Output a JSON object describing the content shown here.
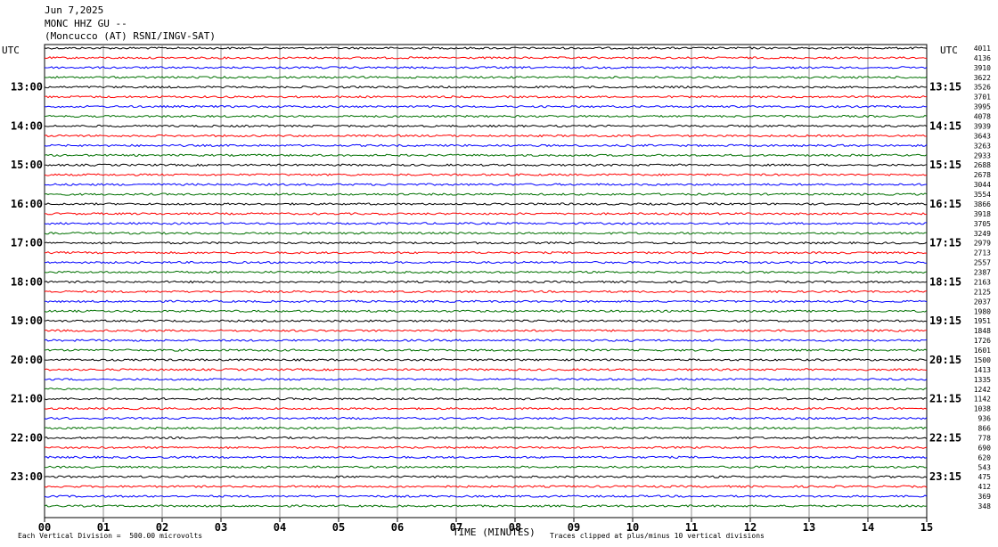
{
  "header": {
    "date": "Jun 7,2025",
    "channel": "MONC HHZ GU --",
    "station": "(Moncucco (AT) RSNI/INGV-SAT)"
  },
  "labels": {
    "utc_left": "UTC",
    "utc_right": "UTC",
    "xaxis_title": "TIME (MINUTES)",
    "scale_note": "Each Vertical Division =  500.00 microvolts",
    "clip_note": "Traces clipped at plus/minus 10 vertical divisions"
  },
  "colors": {
    "cycle": [
      "#000000",
      "#ff0000",
      "#0000ff",
      "#007000"
    ],
    "grid": "#8f8f8f"
  },
  "chart_data": {
    "type": "line",
    "title": "MONC HHZ GU --",
    "xlabel": "TIME (MINUTES)",
    "xlim": [
      0,
      15
    ],
    "x_ticks": [
      "00",
      "01",
      "02",
      "03",
      "04",
      "05",
      "06",
      "07",
      "08",
      "09",
      "10",
      "11",
      "12",
      "13",
      "14",
      "15"
    ],
    "left_time_labels": [
      "13:00",
      "14:00",
      "15:00",
      "16:00",
      "17:00",
      "18:00",
      "19:00",
      "20:00",
      "21:00",
      "22:00",
      "23:00"
    ],
    "right_time_labels": [
      "13:15",
      "14:15",
      "15:15",
      "16:15",
      "17:15",
      "18:15",
      "19:15",
      "20:15",
      "21:15",
      "22:15",
      "23:15"
    ],
    "trace_rms_counts": [
      "4011",
      "4136",
      "3910",
      "3622",
      "3526",
      "3701",
      "3995",
      "4078",
      "3939",
      "3643",
      "3263",
      "2933",
      "2688",
      "2678",
      "3044",
      "3554",
      "3866",
      "3918",
      "3705",
      "3249",
      "2979",
      "2713",
      "2557",
      "2387",
      "2163",
      "2125",
      "2037",
      "1980",
      "1951",
      "1848",
      "1726",
      "1601",
      "1500",
      "1413",
      "1335",
      "1242",
      "1142",
      "1038",
      "936",
      "866",
      "778",
      "690",
      "620",
      "543",
      "475",
      "412",
      "369",
      "348"
    ],
    "vertical_division_microvolts": 500.0,
    "clip_divisions": 10
  }
}
